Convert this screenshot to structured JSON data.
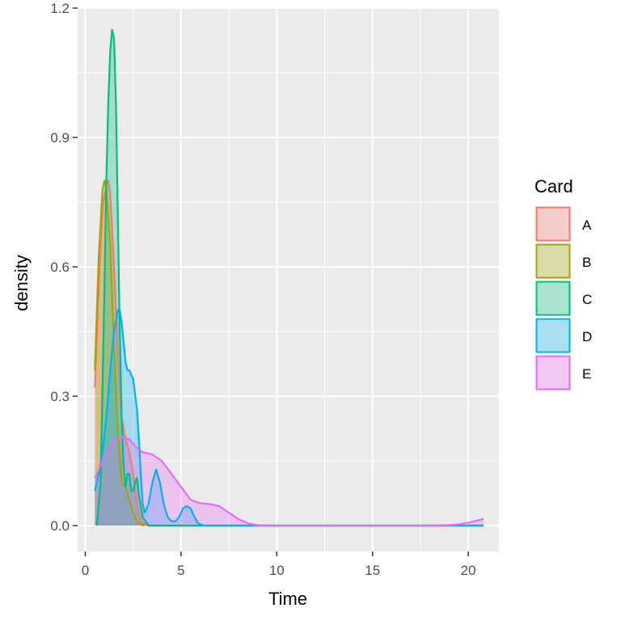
{
  "chart_data": {
    "type": "area",
    "subtype": "density",
    "xlabel": "Time",
    "ylabel": "density",
    "xlim": [
      -0.4,
      21.6
    ],
    "ylim": [
      -0.06,
      1.2
    ],
    "x_ticks": [
      0,
      5,
      10,
      15,
      20
    ],
    "x_tick_labels": [
      "0",
      "5",
      "10",
      "15",
      "20"
    ],
    "y_ticks": [
      0.0,
      0.3,
      0.6,
      0.9,
      1.2
    ],
    "y_tick_labels": [
      "0.0",
      "0.3",
      "0.6",
      "0.9",
      "1.2"
    ],
    "grid": true,
    "legend": {
      "title": "Card",
      "position": "right"
    },
    "series": [
      {
        "name": "A",
        "color": "#F8766D",
        "x": [
          0.5,
          0.7,
          0.9,
          1.1,
          1.2,
          1.3,
          1.5,
          1.7,
          1.9,
          2.1,
          2.3,
          2.5,
          2.7,
          2.9,
          3.1,
          3.3
        ],
        "y": [
          0.32,
          0.55,
          0.74,
          0.79,
          0.8,
          0.77,
          0.6,
          0.4,
          0.25,
          0.2,
          0.17,
          0.12,
          0.05,
          0.01,
          0.003,
          0.0
        ]
      },
      {
        "name": "B",
        "color": "#A3A500",
        "x": [
          0.5,
          0.7,
          0.9,
          1.0,
          1.1,
          1.3,
          1.5,
          1.7,
          1.9,
          2.1,
          2.3,
          2.5,
          2.7,
          2.9,
          3.1
        ],
        "y": [
          0.36,
          0.62,
          0.78,
          0.8,
          0.78,
          0.65,
          0.42,
          0.22,
          0.1,
          0.09,
          0.06,
          0.03,
          0.01,
          0.002,
          0.0
        ]
      },
      {
        "name": "C",
        "color": "#00BF7D",
        "x": [
          0.6,
          0.8,
          1.0,
          1.1,
          1.2,
          1.3,
          1.4,
          1.5,
          1.6,
          1.7,
          1.8,
          1.9,
          2.0,
          2.1,
          2.2,
          2.3,
          2.4,
          2.5,
          2.6,
          2.7,
          2.8,
          3.0,
          3.3,
          5.0,
          20.8
        ],
        "y": [
          0.0,
          0.1,
          0.55,
          0.8,
          0.98,
          1.1,
          1.15,
          1.13,
          0.98,
          0.72,
          0.45,
          0.25,
          0.14,
          0.09,
          0.12,
          0.12,
          0.08,
          0.08,
          0.1,
          0.11,
          0.07,
          0.02,
          0.0,
          0.0,
          0.0
        ]
      },
      {
        "name": "D",
        "color": "#00B0F6",
        "x": [
          0.5,
          0.7,
          0.9,
          1.1,
          1.3,
          1.5,
          1.7,
          1.8,
          1.9,
          2.1,
          2.2,
          2.3,
          2.5,
          2.7,
          2.8,
          2.9,
          3.0,
          3.1,
          3.3,
          3.5,
          3.7,
          3.9,
          4.1,
          4.3,
          4.5,
          4.7,
          4.9,
          5.1,
          5.3,
          5.5,
          5.7,
          5.9,
          6.2,
          10.0,
          20.8
        ],
        "y": [
          0.08,
          0.12,
          0.17,
          0.25,
          0.36,
          0.45,
          0.5,
          0.5,
          0.47,
          0.38,
          0.36,
          0.36,
          0.34,
          0.27,
          0.2,
          0.12,
          0.05,
          0.03,
          0.05,
          0.1,
          0.13,
          0.1,
          0.05,
          0.02,
          0.01,
          0.01,
          0.02,
          0.04,
          0.045,
          0.04,
          0.02,
          0.005,
          0.0,
          0.0,
          0.0
        ]
      },
      {
        "name": "E",
        "color": "#E76BF3",
        "x": [
          0.5,
          0.8,
          1.1,
          1.5,
          1.9,
          2.3,
          2.7,
          3.0,
          3.5,
          4.0,
          4.5,
          5.0,
          5.5,
          6.0,
          6.5,
          7.0,
          7.5,
          8.0,
          8.5,
          9.0,
          9.5,
          10.0,
          14.0,
          18.0,
          19.0,
          19.5,
          20.0,
          20.5,
          20.8
        ],
        "y": [
          0.11,
          0.14,
          0.17,
          0.2,
          0.205,
          0.2,
          0.18,
          0.17,
          0.165,
          0.15,
          0.12,
          0.09,
          0.06,
          0.052,
          0.05,
          0.045,
          0.03,
          0.015,
          0.005,
          0.001,
          0.0,
          0.0,
          0.0,
          0.0,
          0.001,
          0.003,
          0.007,
          0.012,
          0.016
        ]
      }
    ]
  }
}
